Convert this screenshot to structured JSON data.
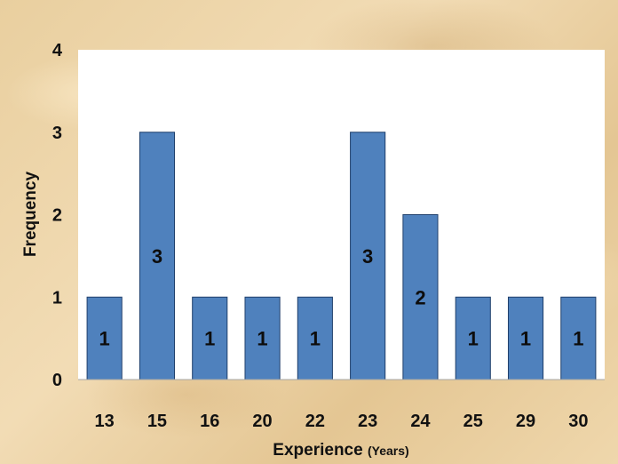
{
  "chart_data": {
    "type": "bar",
    "title": "",
    "xlabel": "Experience",
    "xlabel_unit": "(Years)",
    "ylabel": "Frequency",
    "categories": [
      "13",
      "15",
      "16",
      "20",
      "22",
      "23",
      "24",
      "25",
      "29",
      "30"
    ],
    "values": [
      1,
      3,
      1,
      1,
      1,
      3,
      2,
      1,
      1,
      1
    ],
    "ylim": [
      0,
      4
    ],
    "yticks": [
      "0",
      "1",
      "2",
      "3",
      "4"
    ],
    "grid": false,
    "legend": "none",
    "data_labels": true
  },
  "colors": {
    "bar_fill": "#4f81bd",
    "bar_stroke": "#1f3f6b",
    "plot_background": "#ffffff"
  }
}
